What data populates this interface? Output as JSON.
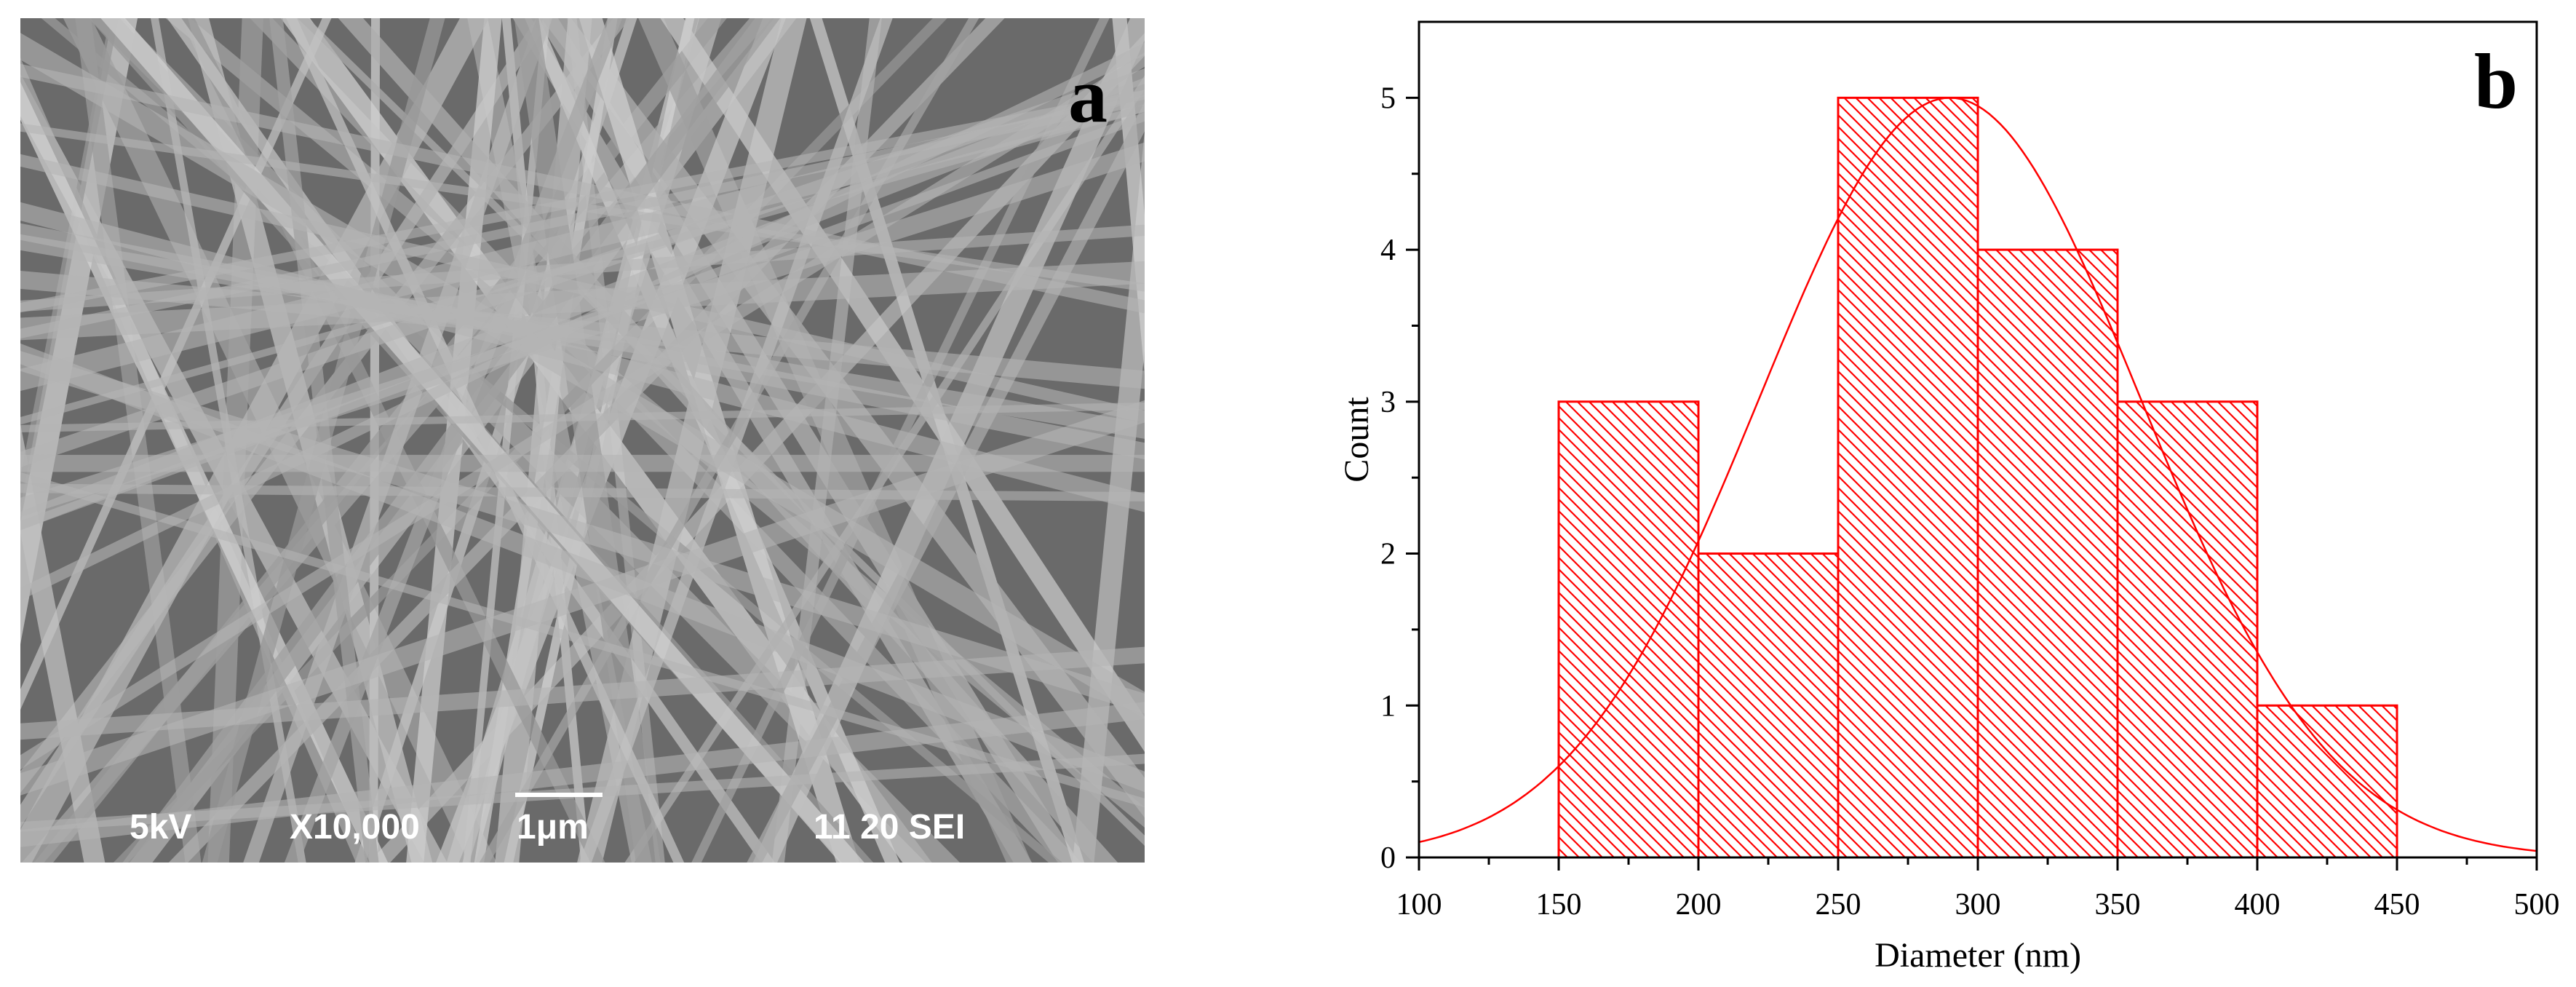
{
  "panel_a": {
    "letter": "a",
    "info": {
      "voltage": "5kV",
      "magnification": "X10,000",
      "scale_bar": "1μm",
      "id": "11 20 SEI"
    }
  },
  "panel_b": {
    "letter": "b"
  },
  "colors": {
    "hist": "#ff0000",
    "axis": "#000000",
    "sem_bg": "#6a6a6a",
    "fiber": "#b4b4b4"
  },
  "chart_data": {
    "type": "bar",
    "title": "",
    "xlabel": "Diameter (nm)",
    "ylabel": "Count",
    "xlim": [
      100,
      500
    ],
    "ylim": [
      0,
      5.5
    ],
    "xticks": [
      100,
      150,
      200,
      250,
      300,
      350,
      400,
      450,
      500
    ],
    "yticks": [
      0,
      1,
      2,
      3,
      4,
      5
    ],
    "bins": [
      {
        "start": 150,
        "end": 200,
        "count": 3
      },
      {
        "start": 200,
        "end": 250,
        "count": 2
      },
      {
        "start": 250,
        "end": 300,
        "count": 5
      },
      {
        "start": 300,
        "end": 350,
        "count": 4
      },
      {
        "start": 350,
        "end": 400,
        "count": 3
      },
      {
        "start": 400,
        "end": 450,
        "count": 1
      }
    ],
    "fit": {
      "type": "gaussian",
      "center": 290,
      "sigma": 68,
      "amplitude": 5
    },
    "fill_pattern": "diagonal-hatch",
    "grid": false
  }
}
